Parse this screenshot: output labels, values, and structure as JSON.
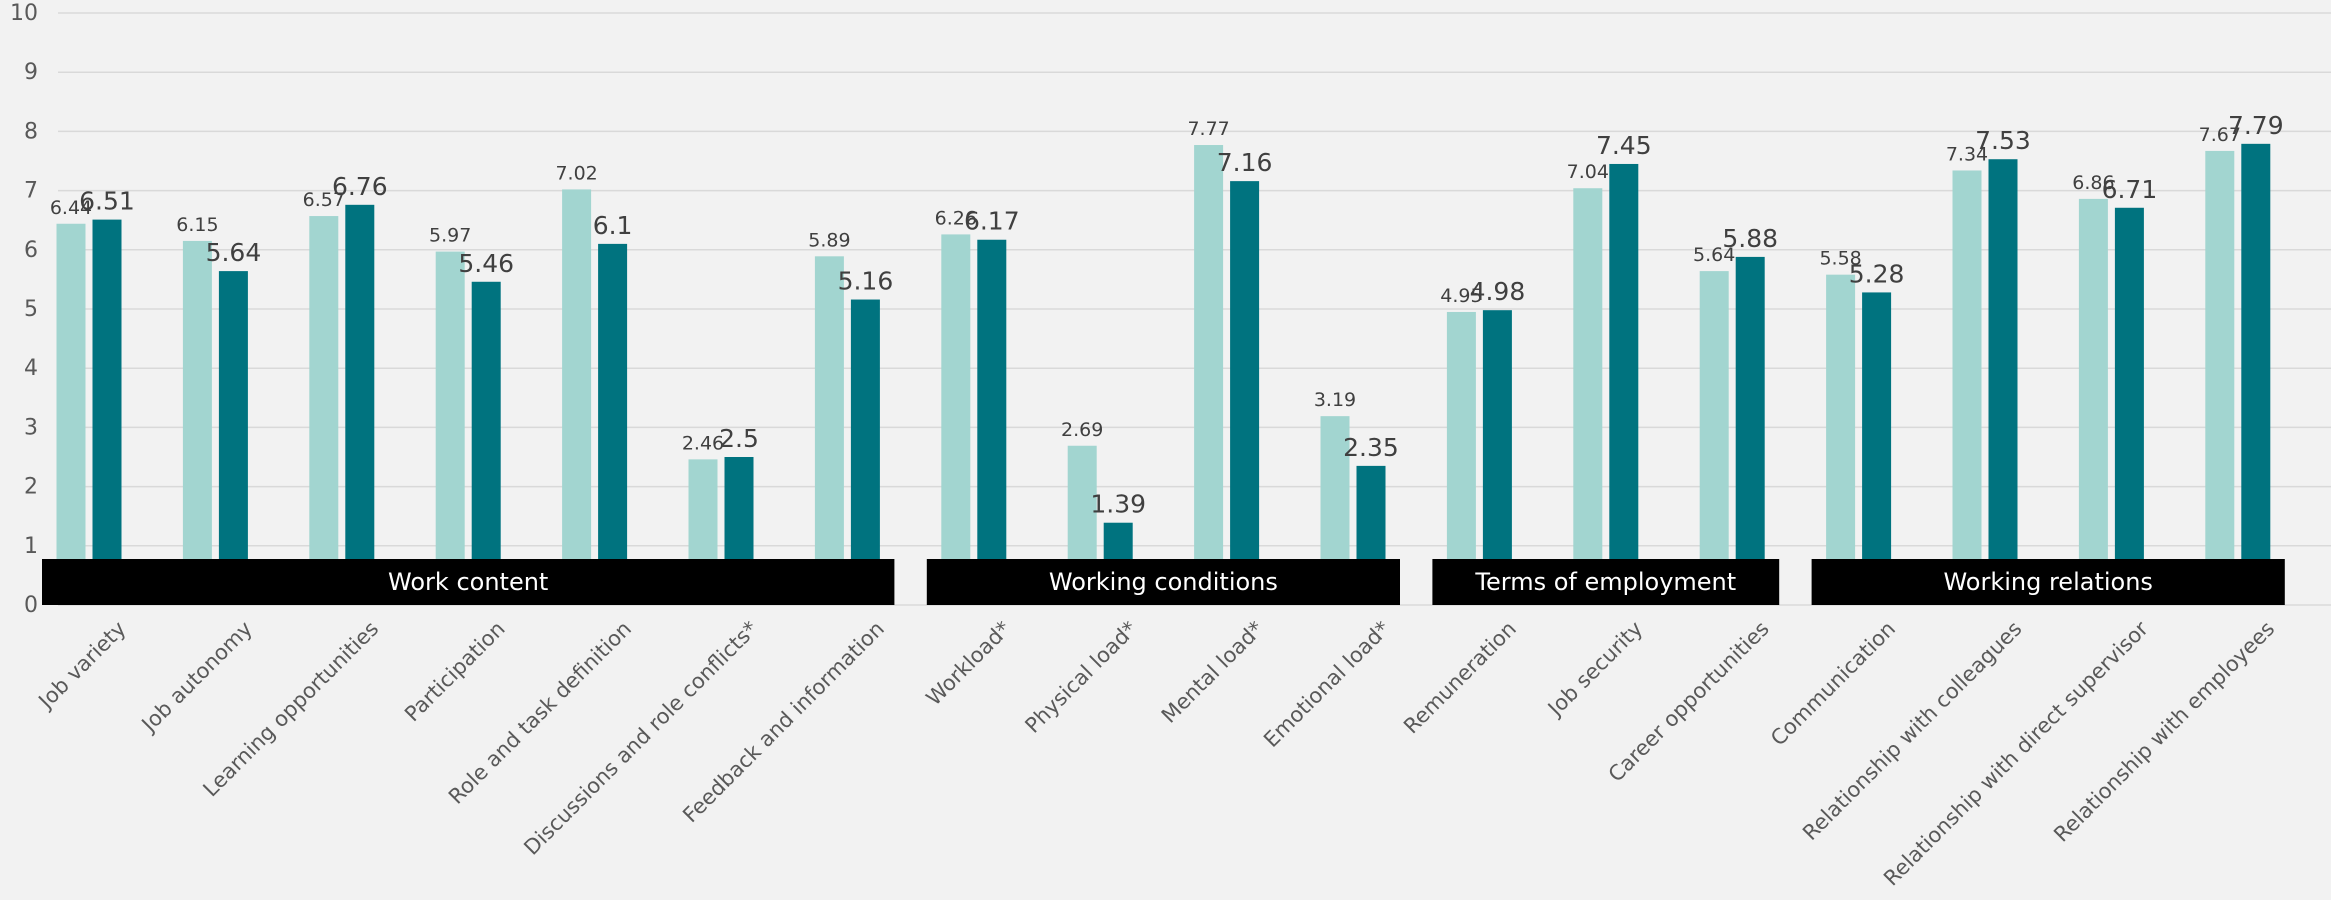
{
  "chart_data": {
    "type": "bar",
    "title": "",
    "xlabel": "",
    "ylabel": "",
    "ylim": [
      0,
      10
    ],
    "yticks": [
      0,
      1,
      2,
      3,
      4,
      5,
      6,
      7,
      8,
      9,
      10
    ],
    "grid": true,
    "legend": "none",
    "categories": [
      "Job variety",
      "Job autonomy",
      "Learning opportunities",
      "Participation",
      "Role and task definition",
      "Discussions and role conflicts*",
      "Feedback and information",
      "Workload*",
      "Physical load*",
      "Mental load*",
      "Emotional load*",
      "Remuneration",
      "Job security",
      "Career opportunities",
      "Communication",
      "Relationship with colleagues",
      "Relationship with direct supervisor",
      "Relationship with employees"
    ],
    "series": [
      {
        "color": "#a2d5d0",
        "values": [
          6.44,
          6.15,
          6.57,
          5.97,
          7.02,
          2.46,
          5.89,
          6.26,
          2.69,
          7.77,
          3.19,
          4.95,
          7.04,
          5.64,
          5.58,
          7.34,
          6.86,
          7.67
        ]
      },
      {
        "color": "#00737f",
        "values": [
          6.51,
          5.64,
          6.76,
          5.46,
          6.1,
          2.5,
          5.16,
          6.17,
          1.39,
          7.16,
          2.35,
          4.98,
          7.45,
          5.88,
          5.28,
          7.53,
          6.71,
          7.79
        ]
      }
    ],
    "groups": [
      {
        "label": "Work content",
        "start": 0,
        "end": 6
      },
      {
        "label": "Working conditions",
        "start": 7,
        "end": 10
      },
      {
        "label": "Terms of employment",
        "start": 11,
        "end": 13
      },
      {
        "label": "Working relations",
        "start": 14,
        "end": 17
      }
    ]
  },
  "colors": {
    "background": "#f2f2f2",
    "gridline": "#d9d9d9",
    "axis_text": "#595959",
    "value_text": "#404040",
    "group_band": "#000000",
    "group_text": "#ffffff"
  }
}
